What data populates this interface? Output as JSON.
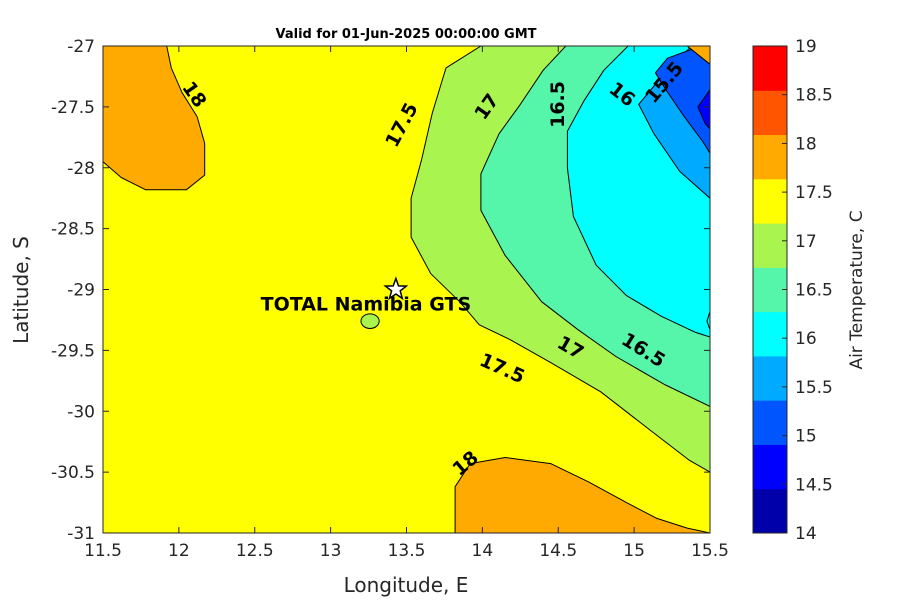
{
  "chart_data": {
    "type": "heatmap",
    "title": "Valid for 01-Jun-2025 00:00:00 GMT",
    "xlabel": "Longitude, E",
    "ylabel": "Latitude, S",
    "xlim": [
      11.5,
      15.5
    ],
    "ylim": [
      -31,
      -27
    ],
    "x_ticks": [
      "11.5",
      "12",
      "12.5",
      "13",
      "13.5",
      "14",
      "14.5",
      "15",
      "15.5"
    ],
    "y_ticks": [
      "-27",
      "-27.5",
      "-28",
      "-28.5",
      "-29",
      "-29.5",
      "-30",
      "-30.5",
      "-31"
    ],
    "background_level_color": "#ffff00",
    "regions": [
      {
        "level": "17-17.5",
        "color": "#aaf450",
        "points": [
          [
            13.99,
            -27
          ],
          [
            13.76,
            -27.18
          ],
          [
            13.67,
            -27.55
          ],
          [
            13.6,
            -27.93
          ],
          [
            13.53,
            -28.25
          ],
          [
            13.53,
            -28.57
          ],
          [
            13.66,
            -28.87
          ],
          [
            13.85,
            -29.1
          ],
          [
            13.98,
            -29.29
          ],
          [
            14.18,
            -29.41
          ],
          [
            14.45,
            -29.6
          ],
          [
            14.78,
            -29.84
          ],
          [
            15.1,
            -30.15
          ],
          [
            15.36,
            -30.4
          ],
          [
            15.5,
            -30.5
          ],
          [
            15.5,
            -27
          ]
        ]
      },
      {
        "level": "16.5-17",
        "color": "#55f5aa",
        "points": [
          [
            14.55,
            -27
          ],
          [
            14.4,
            -27.2
          ],
          [
            14.25,
            -27.48
          ],
          [
            14.11,
            -27.72
          ],
          [
            13.99,
            -28.05
          ],
          [
            13.99,
            -28.35
          ],
          [
            14.15,
            -28.72
          ],
          [
            14.39,
            -29.1
          ],
          [
            14.63,
            -29.33
          ],
          [
            14.88,
            -29.55
          ],
          [
            15.2,
            -29.78
          ],
          [
            15.5,
            -29.96
          ],
          [
            15.5,
            -27
          ]
        ]
      },
      {
        "level": "16-16.5",
        "color": "#00ffff",
        "points": [
          [
            14.96,
            -27
          ],
          [
            14.8,
            -27.2
          ],
          [
            14.67,
            -27.45
          ],
          [
            14.56,
            -27.7
          ],
          [
            14.56,
            -28
          ],
          [
            14.6,
            -28.4
          ],
          [
            14.75,
            -28.8
          ],
          [
            14.95,
            -29.05
          ],
          [
            15.18,
            -29.22
          ],
          [
            15.4,
            -29.35
          ],
          [
            15.5,
            -29.39
          ],
          [
            15.5,
            -27
          ]
        ]
      },
      {
        "level": "15.5-16",
        "color": "#00aaff",
        "points": [
          [
            15.38,
            -27
          ],
          [
            15.28,
            -27.12
          ],
          [
            15.15,
            -27.3
          ],
          [
            15.03,
            -27.48
          ],
          [
            15.13,
            -27.72
          ],
          [
            15.3,
            -28.03
          ],
          [
            15.5,
            -28.25
          ],
          [
            15.5,
            -27
          ]
        ]
      },
      {
        "level": "15-15.5",
        "color": "#0055ff",
        "points": [
          [
            15.44,
            -27
          ],
          [
            15.22,
            -27.1
          ],
          [
            15.14,
            -27.22
          ],
          [
            15.21,
            -27.36
          ],
          [
            15.33,
            -27.58
          ],
          [
            15.45,
            -27.78
          ],
          [
            15.5,
            -27.88
          ],
          [
            15.5,
            -27
          ]
        ]
      },
      {
        "level": "14.5-15",
        "color": "#0000ff",
        "points": [
          [
            15.5,
            -27.36
          ],
          [
            15.42,
            -27.5
          ],
          [
            15.47,
            -27.64
          ],
          [
            15.5,
            -27.68
          ]
        ]
      },
      {
        "level": "16-16.5 (spot)",
        "color": "#00ffff",
        "points": [
          [
            15.5,
            -29.18
          ],
          [
            15.48,
            -29.26
          ],
          [
            15.5,
            -29.33
          ]
        ]
      },
      {
        "level": "17.5-18",
        "color": "#ffaa00",
        "points": [
          [
            11.5,
            -27
          ],
          [
            11.5,
            -27.95
          ],
          [
            11.62,
            -28.08
          ],
          [
            11.78,
            -28.18
          ],
          [
            12.05,
            -28.18
          ],
          [
            12.17,
            -28.06
          ],
          [
            12.17,
            -27.8
          ],
          [
            12.12,
            -27.58
          ],
          [
            12.02,
            -27.38
          ],
          [
            11.95,
            -27.18
          ],
          [
            11.92,
            -27
          ]
        ]
      },
      {
        "level": "17.5-18",
        "color": "#ffaa00",
        "points": [
          [
            13.82,
            -31
          ],
          [
            13.82,
            -30.62
          ],
          [
            13.92,
            -30.43
          ],
          [
            14.15,
            -30.38
          ],
          [
            14.45,
            -30.43
          ],
          [
            14.7,
            -30.58
          ],
          [
            14.95,
            -30.75
          ],
          [
            15.15,
            -30.88
          ],
          [
            15.35,
            -30.96
          ],
          [
            15.5,
            -31
          ]
        ]
      },
      {
        "level": "17-17.5 (spot)",
        "color": "#aaf450",
        "ellipse": {
          "cx": 13.26,
          "cy": -29.26,
          "rx": 0.06,
          "ry": 0.06
        }
      },
      {
        "level": "18+ (corner)",
        "color": "#ffaa00",
        "points": [
          [
            15.35,
            -27
          ],
          [
            15.5,
            -27
          ],
          [
            15.5,
            -27.15
          ]
        ]
      }
    ],
    "contour_labels": [
      {
        "text": "18",
        "x": 12.1,
        "y": -27.4,
        "angle": 55
      },
      {
        "text": "17.5",
        "x": 13.47,
        "y": -27.65,
        "angle": -62
      },
      {
        "text": "17",
        "x": 14.03,
        "y": -27.5,
        "angle": -55
      },
      {
        "text": "16.5",
        "x": 14.5,
        "y": -27.48,
        "angle": -90
      },
      {
        "text": "16",
        "x": 14.92,
        "y": -27.4,
        "angle": 38
      },
      {
        "text": "15.5",
        "x": 15.2,
        "y": -27.3,
        "angle": -50
      },
      {
        "text": "17",
        "x": 14.58,
        "y": -29.48,
        "angle": 30
      },
      {
        "text": "16.5",
        "x": 15.06,
        "y": -29.5,
        "angle": 32
      },
      {
        "text": "17.5",
        "x": 14.13,
        "y": -29.65,
        "angle": 24
      },
      {
        "text": "18",
        "x": 13.89,
        "y": -30.43,
        "angle": -40
      }
    ],
    "site": {
      "name": "TOTAL Namibia GTS",
      "lon": 13.43,
      "lat": -29.0
    },
    "colorbar": {
      "label": "Air Temperature, C",
      "ticks": [
        "14",
        "14.5",
        "15",
        "15.5",
        "16",
        "16.5",
        "17",
        "17.5",
        "18",
        "18.5",
        "19"
      ],
      "colors": [
        "#0000aa",
        "#0000ff",
        "#0055ff",
        "#00aaff",
        "#00ffff",
        "#55f5aa",
        "#aaf450",
        "#ffff00",
        "#ffaa00",
        "#ff5500",
        "#ff0000"
      ]
    }
  }
}
